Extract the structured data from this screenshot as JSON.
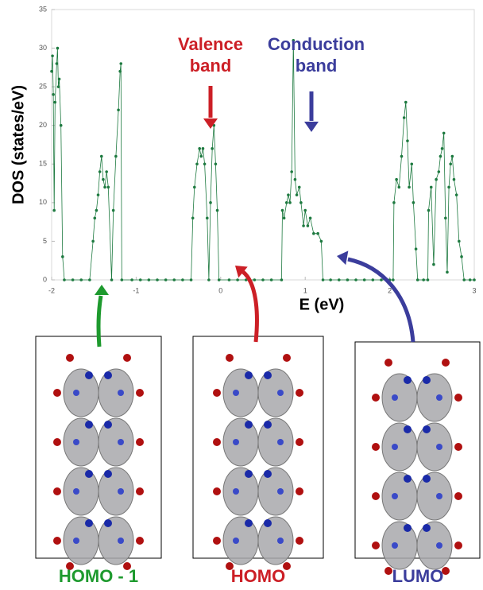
{
  "chart_data": {
    "type": "line",
    "y_label": "DOS (states/eV)",
    "x_label": "E (eV)",
    "color": "#1e7a40",
    "x": [
      -2.0,
      -1.99,
      -1.98,
      -1.97,
      -1.96,
      -1.94,
      -1.93,
      -1.92,
      -1.91,
      -1.89,
      -1.87,
      -1.85,
      -1.75,
      -1.65,
      -1.55,
      -1.51,
      -1.49,
      -1.47,
      -1.45,
      -1.43,
      -1.41,
      -1.39,
      -1.37,
      -1.35,
      -1.33,
      -1.29,
      -1.27,
      -1.24,
      -1.21,
      -1.19,
      -1.18,
      -1.17,
      -1.05,
      -0.95,
      -0.85,
      -0.75,
      -0.65,
      -0.55,
      -0.45,
      -0.35,
      -0.33,
      -0.31,
      -0.28,
      -0.25,
      -0.23,
      -0.21,
      -0.19,
      -0.16,
      -0.14,
      -0.12,
      -0.1,
      -0.08,
      -0.06,
      -0.04,
      -0.02,
      0.1,
      0.2,
      0.3,
      0.4,
      0.5,
      0.6,
      0.72,
      0.73,
      0.75,
      0.78,
      0.8,
      0.82,
      0.84,
      0.86,
      0.88,
      0.9,
      0.93,
      0.95,
      0.98,
      1.0,
      1.03,
      1.06,
      1.1,
      1.15,
      1.19,
      1.21,
      1.3,
      1.4,
      1.5,
      1.6,
      1.7,
      1.8,
      1.9,
      2.0,
      2.04,
      2.05,
      2.08,
      2.11,
      2.14,
      2.17,
      2.19,
      2.21,
      2.23,
      2.26,
      2.28,
      2.31,
      2.33,
      2.4,
      2.45,
      2.46,
      2.49,
      2.52,
      2.55,
      2.58,
      2.6,
      2.62,
      2.64,
      2.66,
      2.68,
      2.7,
      2.72,
      2.74,
      2.76,
      2.79,
      2.82,
      2.85,
      2.88,
      2.95,
      3.0
    ],
    "values": [
      27,
      29,
      24,
      9,
      23,
      28,
      30,
      25,
      26,
      20,
      3,
      0,
      0,
      0,
      0,
      5,
      8,
      9,
      11,
      14,
      16,
      13,
      12,
      14,
      12,
      0,
      9,
      16,
      22,
      27,
      28,
      0,
      0,
      0,
      0,
      0,
      0,
      0,
      0,
      0,
      8,
      12,
      15,
      17,
      16,
      17,
      15,
      8,
      0,
      10,
      17,
      20,
      15,
      9,
      0,
      0,
      0,
      0,
      0,
      0,
      0,
      0,
      9,
      8,
      10,
      11,
      10,
      14,
      31,
      13,
      11,
      12,
      10,
      7,
      9,
      7,
      8,
      6,
      6,
      5,
      0,
      0,
      0,
      0,
      0,
      0,
      0,
      0,
      0,
      0,
      10,
      13,
      12,
      16,
      21,
      23,
      18,
      12,
      15,
      10,
      4,
      0,
      0,
      0,
      9,
      12,
      2,
      13,
      14,
      16,
      17,
      19,
      8,
      1,
      12,
      15,
      16,
      13,
      11,
      5,
      3,
      0,
      0,
      0
    ],
    "xlim": [
      -2,
      3
    ],
    "xticks": [
      -2,
      -1,
      0,
      1,
      2,
      3
    ],
    "ylim": [
      0,
      35
    ],
    "yticks": [
      0,
      5,
      10,
      15,
      20,
      25,
      30,
      35
    ],
    "annotations": [
      {
        "text": "Valence band",
        "color": "#cc1f26"
      },
      {
        "text": "Conduction band",
        "color": "#3b3d9c"
      }
    ],
    "captions": [
      {
        "text": "HOMO - 1",
        "color": "#1e9a2e"
      },
      {
        "text": "HOMO",
        "color": "#cc1f26"
      },
      {
        "text": "LUMO",
        "color": "#3b3d9c"
      }
    ]
  }
}
